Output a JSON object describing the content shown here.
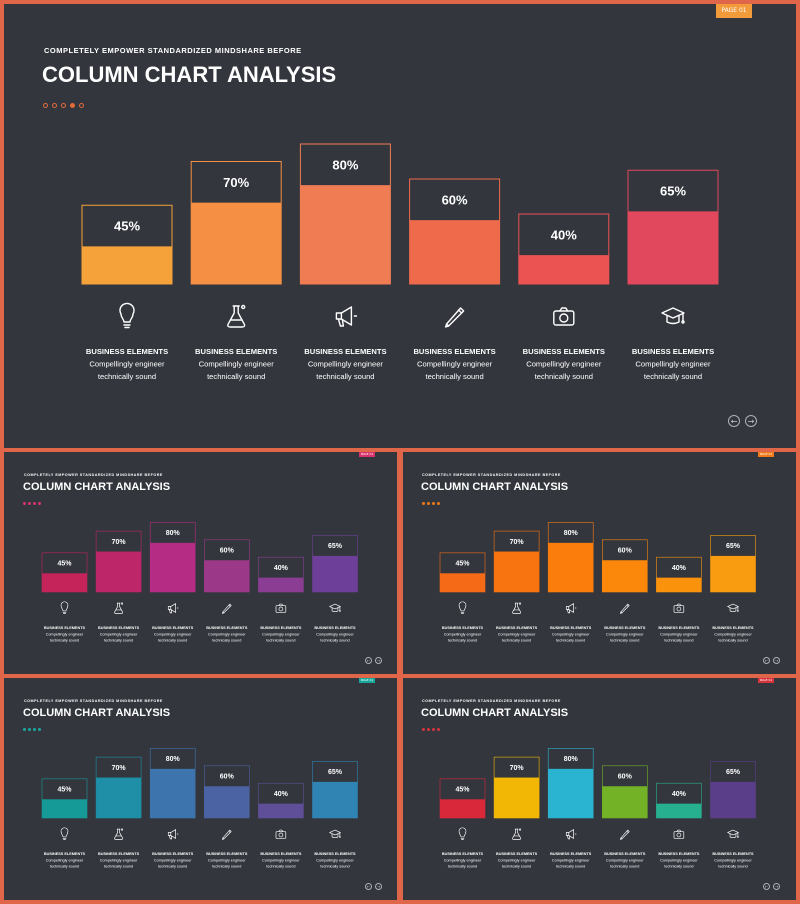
{
  "subtitle": "COMPLETELY EMPOWER STANDARDIZED MINDSHARE BEFORE",
  "title": "COLUMN CHART ANALYSIS",
  "page_tag": "PAGE 01",
  "item_label": {
    "title": "BUSINESS ELEMENTS",
    "line1": "Compellingly engineer",
    "line2": "technically sound"
  },
  "icons": [
    "lightbulb-icon",
    "flask-icon",
    "megaphone-icon",
    "pencil-icon",
    "camera-icon",
    "graduation-cap-icon"
  ],
  "nav": {
    "prev": "←",
    "next": "→"
  },
  "themes": {
    "main": {
      "tag": "#f39a3b",
      "bars": [
        "#f5a23a",
        "#f58f43",
        "#f07c54",
        "#ee6a4b",
        "#ea5352",
        "#e2485d"
      ]
    },
    "pink": {
      "tag": "#d6336c",
      "bars": [
        "#c4245a",
        "#bd2669",
        "#b42c83",
        "#9b3887",
        "#8a3d93",
        "#6e3f99"
      ]
    },
    "orange": {
      "tag": "#f07a1a",
      "bars": [
        "#f56a16",
        "#f77410",
        "#fb7d0b",
        "#fb870b",
        "#fb920b",
        "#f99c0f"
      ]
    },
    "teal": {
      "tag": "#18a89b",
      "bars": [
        "#169a98",
        "#1e8fa7",
        "#3d74ad",
        "#4b63a2",
        "#5f4f99",
        "#2f84b3"
      ]
    },
    "multi": {
      "tag": "#d8343c",
      "bars": [
        "#d8283a",
        "#f2b705",
        "#2ab4d2",
        "#73b126",
        "#27b08f",
        "#5a3e8a"
      ]
    }
  },
  "chart_data": {
    "type": "bar",
    "categories": [
      "",
      "",
      "",
      "",
      "",
      ""
    ],
    "values": [
      45,
      70,
      80,
      60,
      40,
      65
    ],
    "value_labels": [
      "45%",
      "70%",
      "80%",
      "60%",
      "40%",
      "65%"
    ],
    "ylim": [
      0,
      100
    ],
    "grid": false
  }
}
